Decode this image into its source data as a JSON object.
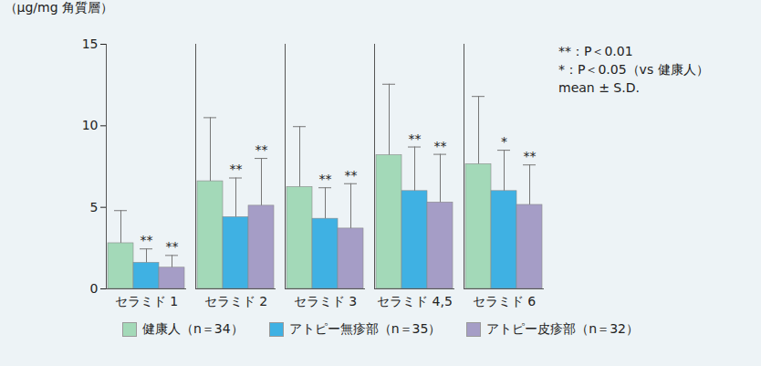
{
  "chart_data": {
    "type": "bar",
    "y_label": "（μg/mg 角質層）",
    "categories": [
      "セラミド 1",
      "セラミド 2",
      "セラミド 3",
      "セラミド 4,5",
      "セラミド 6"
    ],
    "series": [
      {
        "name": "健康人（n＝34）",
        "color": "#a3d9b8",
        "values": [
          2.8,
          6.6,
          6.25,
          8.2,
          7.65
        ],
        "errors": [
          2.0,
          3.9,
          3.7,
          4.35,
          4.15
        ],
        "significance": [
          null,
          null,
          null,
          null,
          null
        ]
      },
      {
        "name": "アトピー無疹部（n＝35）",
        "color": "#3fb1e3",
        "values": [
          1.6,
          4.4,
          4.3,
          6.0,
          6.0
        ],
        "errors": [
          0.85,
          2.4,
          1.9,
          2.7,
          2.5
        ],
        "significance": [
          "**",
          "**",
          "**",
          "**",
          "*"
        ]
      },
      {
        "name": "アトピー皮疹部（n＝32）",
        "color": "#a59dc6",
        "values": [
          1.3,
          5.1,
          3.7,
          5.3,
          5.15
        ],
        "errors": [
          0.75,
          2.9,
          2.75,
          2.95,
          2.45
        ],
        "significance": [
          "**",
          "**",
          "**",
          "**",
          "**"
        ]
      }
    ],
    "ylim": [
      0,
      15
    ],
    "yticks": [
      0,
      5,
      10,
      15
    ],
    "grid": false,
    "legend": "bottom",
    "annotations": [
      "**：P＜0.01",
      "*：P＜0.05（vs 健康人）",
      "mean ± S.D."
    ]
  }
}
